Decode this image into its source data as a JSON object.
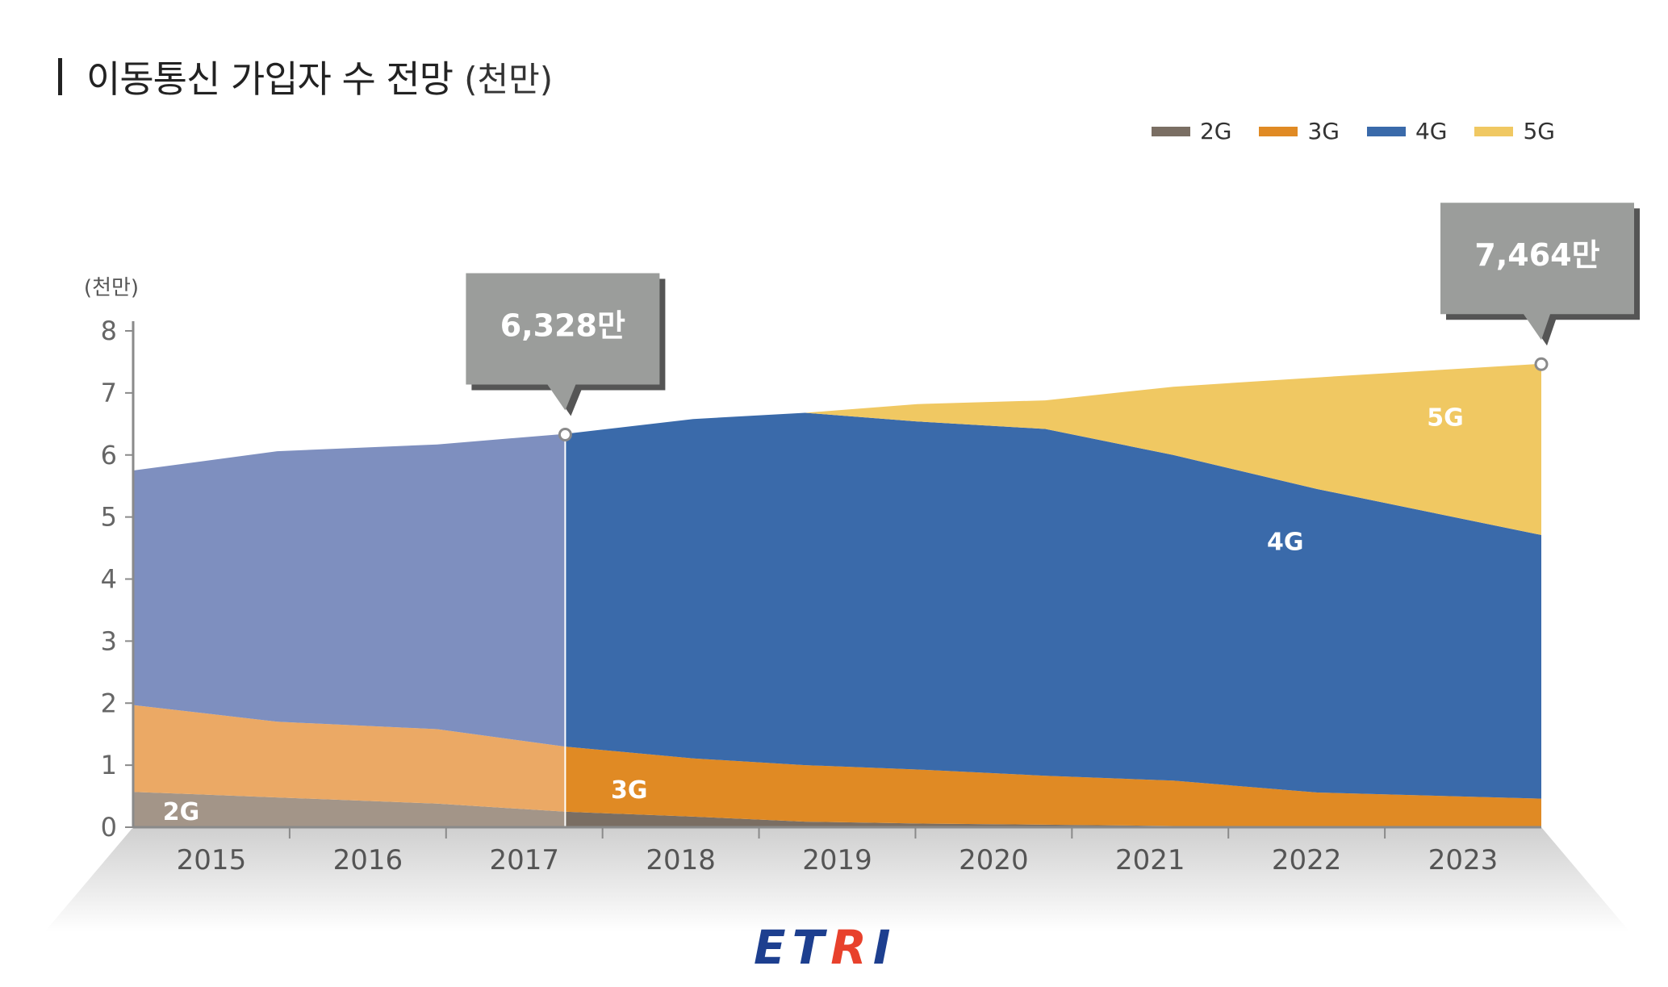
{
  "title": "이동통신 가입자 수 전망",
  "title_unit": "(천만)",
  "legend": [
    {
      "label": "2G",
      "color": "#7a6e63"
    },
    {
      "label": "3G",
      "color": "#e08a24"
    },
    {
      "label": "4G",
      "color": "#3a6aaa"
    },
    {
      "label": "5G",
      "color": "#f0c862"
    }
  ],
  "logo": {
    "part1": "ET",
    "part2": "R",
    "part3": "I"
  },
  "chart_data": {
    "type": "area",
    "stacked": true,
    "ylabel": "(천만)",
    "ylim": [
      0,
      8
    ],
    "yticks": [
      "0",
      "1",
      "2",
      "3",
      "4",
      "5",
      "6",
      "7",
      "8"
    ],
    "categories": [
      "2015",
      "2016",
      "2017",
      "2018",
      "2019",
      "2020",
      "2021",
      "2022",
      "2023"
    ],
    "x": [
      2014.6,
      2015.5,
      2016.5,
      2017.3,
      2018.1,
      2018.8,
      2019.5,
      2020.3,
      2021.1,
      2022.0,
      2023.4
    ],
    "series": [
      {
        "name": "2G",
        "color": "#7a6e63",
        "past_color": "#a39588",
        "values": [
          0.57,
          0.48,
          0.38,
          0.25,
          0.17,
          0.09,
          0.06,
          0.04,
          0.02,
          0.01,
          0.01
        ]
      },
      {
        "name": "3G",
        "color": "#e08a24",
        "past_color": "#eba965",
        "values": [
          1.4,
          1.22,
          1.2,
          1.05,
          0.94,
          0.91,
          0.87,
          0.79,
          0.73,
          0.55,
          0.45
        ]
      },
      {
        "name": "4G",
        "color": "#3a6aaa",
        "past_color": "#7e8fbf",
        "values": [
          3.78,
          4.36,
          4.59,
          5.04,
          5.47,
          5.68,
          5.61,
          5.59,
          5.25,
          4.89,
          4.25
        ]
      },
      {
        "name": "5G",
        "color": "#f0c862",
        "past_color": "#f0c862",
        "values": [
          0,
          0,
          0,
          0,
          0,
          0,
          0.28,
          0.46,
          1.1,
          1.8,
          2.76
        ]
      }
    ],
    "split_x": 2017.3,
    "area_labels": [
      {
        "text": "2G",
        "x": 2014.9,
        "y": 0.25
      },
      {
        "text": "3G",
        "x": 2017.7,
        "y": 0.6
      },
      {
        "text": "4G",
        "x": 2021.8,
        "y": 4.6
      },
      {
        "text": "5G",
        "x": 2022.8,
        "y": 6.6
      }
    ],
    "callouts": [
      {
        "text": "6,328만",
        "x": 2017.3,
        "y": 6.328
      },
      {
        "text": "7,464만",
        "x": 2023.4,
        "y": 7.464
      }
    ]
  }
}
